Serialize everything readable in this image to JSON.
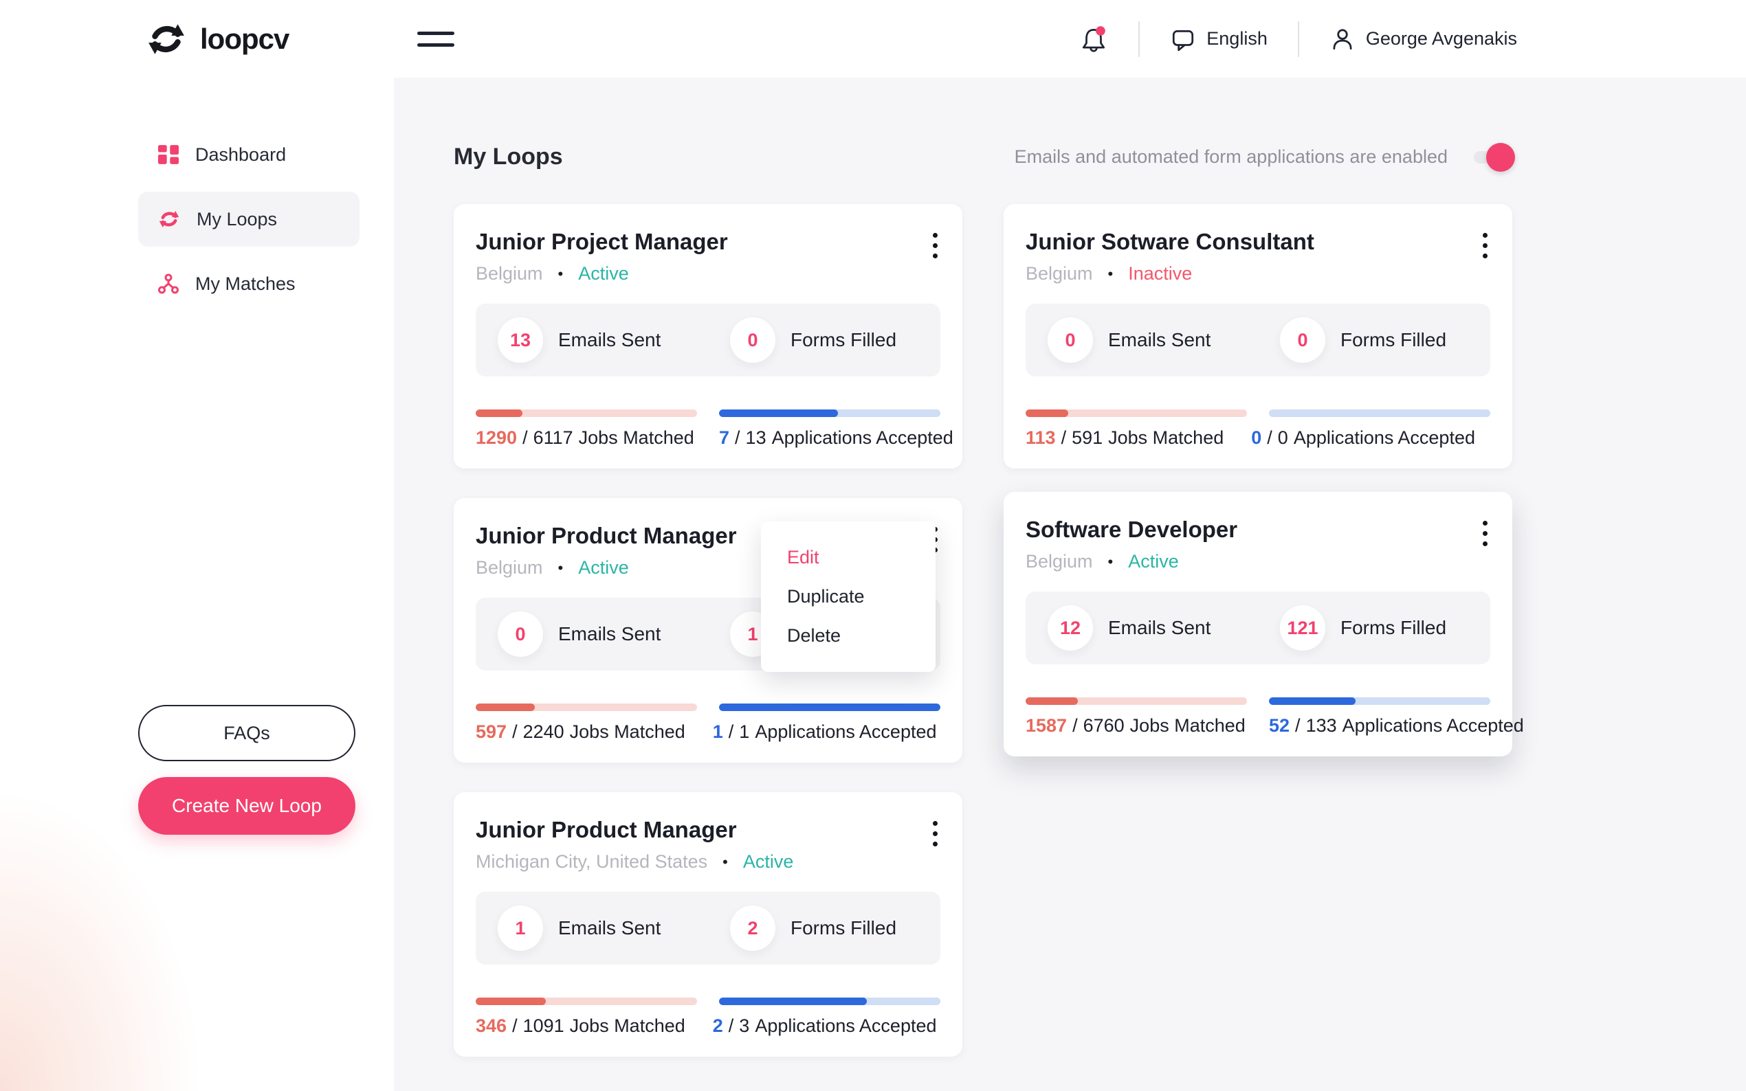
{
  "topbar": {
    "logo_text": "loopcv",
    "language": "English",
    "user_name": "George Avgenakis"
  },
  "sidebar": {
    "items": [
      {
        "label": "Dashboard"
      },
      {
        "label": "My Loops"
      },
      {
        "label": "My Matches"
      }
    ],
    "faq_label": "FAQs",
    "create_loop_label": "Create New Loop"
  },
  "header": {
    "title": "My Loops",
    "toggle_label": "Emails and automated form applications are enabled",
    "toggle_on": true
  },
  "labels": {
    "emails_sent": "Emails Sent",
    "forms_filled": "Forms Filled",
    "jobs_matched": "Jobs Matched",
    "applications_accepted": "Applications Accepted",
    "slash": "/",
    "dot": "•"
  },
  "menu": {
    "items": [
      {
        "label": "Edit"
      },
      {
        "label": "Duplicate"
      },
      {
        "label": "Delete"
      }
    ]
  },
  "cards": [
    {
      "title": "Junior Project Manager",
      "location": "Belgium",
      "status": "Active",
      "emails_sent": 13,
      "forms_filled": 0,
      "matched": {
        "value": 1290,
        "total": 6117
      },
      "accepted": {
        "value": 7,
        "total": 13
      }
    },
    {
      "title": "Junior Sotware Consultant",
      "location": "Belgium",
      "status": "Inactive",
      "emails_sent": 0,
      "forms_filled": 0,
      "matched": {
        "value": 113,
        "total": 591
      },
      "accepted": {
        "value": 0,
        "total": 0
      }
    },
    {
      "title": "Junior Product Manager",
      "location": "Belgium",
      "status": "Active",
      "emails_sent": 0,
      "forms_filled": 1,
      "matched": {
        "value": 597,
        "total": 2240
      },
      "accepted": {
        "value": 1,
        "total": 1
      }
    },
    {
      "title": "Software Developer",
      "location": "Belgium",
      "status": "Active",
      "emails_sent": 12,
      "forms_filled": 121,
      "matched": {
        "value": 1587,
        "total": 6760
      },
      "accepted": {
        "value": 52,
        "total": 133
      }
    },
    {
      "title": "Junior Product Manager",
      "location": "Michigan City, United States",
      "status": "Active",
      "emails_sent": 1,
      "forms_filled": 2,
      "matched": {
        "value": 346,
        "total": 1091
      },
      "accepted": {
        "value": 2,
        "total": 3
      }
    }
  ],
  "colors": {
    "accent": "#f2416e",
    "active": "#2ab5a5",
    "inactive": "#f4566b",
    "bar_red": "#e66a5e",
    "bar_blue": "#2d68dd"
  }
}
